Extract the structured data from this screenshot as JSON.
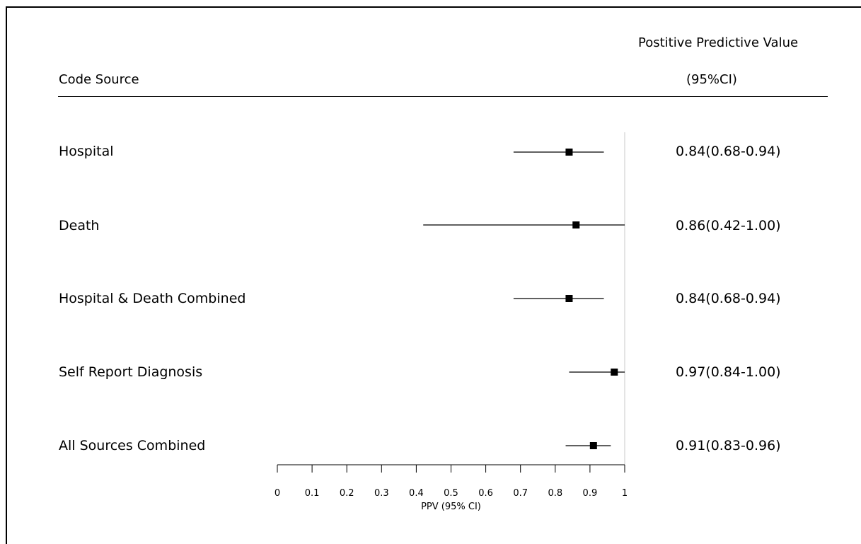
{
  "header": {
    "left": "Code Source",
    "right_line1": "Postitive Predictive Value",
    "right_line2": "(95%CI)"
  },
  "chart_data": {
    "type": "forest",
    "xlabel": "PPV (95% CI)",
    "xlim": [
      0,
      1
    ],
    "xticks": [
      "0",
      "0.1",
      "0.2",
      "0.3",
      "0.4",
      "0.5",
      "0.6",
      "0.7",
      "0.8",
      "0.9",
      "1"
    ],
    "reference_line": 1.0,
    "rows": [
      {
        "label": "Hospital",
        "estimate": 0.84,
        "lower": 0.68,
        "upper": 0.94,
        "ci_text": "0.84(0.68-0.94)"
      },
      {
        "label": "Death",
        "estimate": 0.86,
        "lower": 0.42,
        "upper": 1.0,
        "ci_text": "0.86(0.42-1.00)"
      },
      {
        "label": "Hospital & Death Combined",
        "estimate": 0.84,
        "lower": 0.68,
        "upper": 0.94,
        "ci_text": "0.84(0.68-0.94)"
      },
      {
        "label": "Self Report Diagnosis",
        "estimate": 0.97,
        "lower": 0.84,
        "upper": 1.0,
        "ci_text": "0.97(0.84-1.00)"
      },
      {
        "label": "All Sources Combined",
        "estimate": 0.91,
        "lower": 0.83,
        "upper": 0.96,
        "ci_text": "0.91(0.83-0.96)"
      }
    ]
  }
}
